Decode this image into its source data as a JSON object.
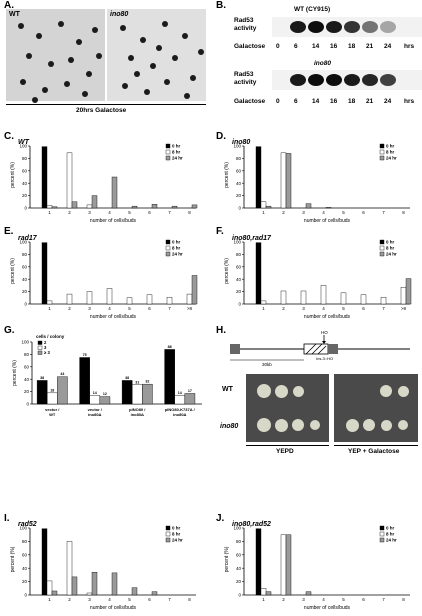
{
  "panel_labels": {
    "A": "A.",
    "B": "B.",
    "C": "C.",
    "D": "D.",
    "E": "E.",
    "F": "F.",
    "G": "G.",
    "H": "H.",
    "I": "I.",
    "J": "J."
  },
  "panelA": {
    "left_label": "WT",
    "right_label": "ino80",
    "caption": "20hrs Galactose"
  },
  "panelB": {
    "top_title": "WT (CY915)",
    "bottom_title": "ino80",
    "row_label_1": "Rad53",
    "row_label_2": "activity",
    "galactose_label": "Galactose",
    "timepoints": [
      "0",
      "6",
      "14",
      "16",
      "18",
      "21",
      "24",
      "hrs"
    ]
  },
  "panelH": {
    "hml_label": "HO",
    "dist_label": "30kb",
    "site_label": "Ins-3::HO",
    "wt_label": "WT",
    "ino80_label": "ino80",
    "ypd_label": "YEPD",
    "gal_label": "YEP + Galactose"
  },
  "colors": {
    "bar_0hr": "#000000",
    "bar_8hr": "#ffffff",
    "bar_24hr": "#9a9a9a",
    "plate": "#4a4a4a",
    "colony": "#d8d8c8"
  },
  "chart_data": [
    {
      "id": "C",
      "type": "bar",
      "title": "WT",
      "xlabel": "number of cells/buds",
      "ylabel": "percent (%)",
      "ylim": [
        0,
        100
      ],
      "yticks": [
        "0",
        "20",
        "40",
        "60",
        "80",
        "100"
      ],
      "categories": [
        "1",
        "2",
        "3",
        "4",
        "5",
        "6",
        "7",
        "8"
      ],
      "series": [
        {
          "name": "0 hr",
          "values": [
            99,
            0,
            0,
            0,
            0,
            0,
            0,
            0
          ]
        },
        {
          "name": "8 hr",
          "values": [
            4,
            89,
            5,
            0,
            0,
            0,
            0,
            0
          ]
        },
        {
          "name": "24 hr",
          "values": [
            2,
            10,
            20,
            50,
            3,
            6,
            3,
            5
          ]
        }
      ]
    },
    {
      "id": "D",
      "type": "bar",
      "title": "ino80",
      "xlabel": "number of cells/buds",
      "ylabel": "percent (%)",
      "ylim": [
        0,
        100
      ],
      "yticks": [
        "0",
        "20",
        "40",
        "60",
        "80",
        "100"
      ],
      "categories": [
        "1",
        "2",
        "3",
        "4",
        "5",
        "6",
        "7",
        "8"
      ],
      "series": [
        {
          "name": "0 hr",
          "values": [
            99,
            0,
            0,
            0,
            0,
            0,
            0,
            0
          ]
        },
        {
          "name": "8 hr",
          "values": [
            10,
            89,
            0,
            0,
            0,
            0,
            0,
            0
          ]
        },
        {
          "name": "24 hr",
          "values": [
            3,
            88,
            7,
            1,
            0,
            0,
            0,
            0
          ]
        }
      ]
    },
    {
      "id": "E",
      "type": "bar",
      "title": "rad17",
      "xlabel": "number of cells/buds",
      "ylabel": "percent (%)",
      "ylim": [
        0,
        100
      ],
      "yticks": [
        "0",
        "20",
        "40",
        "60",
        "80",
        "100"
      ],
      "categories": [
        "1",
        "2",
        "3",
        "4",
        "5",
        "6",
        "7",
        ">8"
      ],
      "series": [
        {
          "name": "0 hr",
          "values": [
            99,
            0,
            0,
            0,
            0,
            0,
            0,
            0
          ]
        },
        {
          "name": "8 hr",
          "values": [
            5,
            16,
            20,
            25,
            10,
            15,
            11,
            16
          ]
        },
        {
          "name": "24 hr",
          "values": [
            0,
            0,
            0,
            0,
            0,
            0,
            0,
            46
          ]
        }
      ]
    },
    {
      "id": "F",
      "type": "bar",
      "title": "ino80,rad17",
      "xlabel": "number of cells/buds",
      "ylabel": "percent (%)",
      "ylim": [
        0,
        100
      ],
      "yticks": [
        "0",
        "20",
        "40",
        "60",
        "80",
        "100"
      ],
      "categories": [
        "1",
        "2",
        "3",
        "4",
        "5",
        "6",
        "7",
        ">8"
      ],
      "series": [
        {
          "name": "0 hr",
          "values": [
            99,
            0,
            0,
            0,
            0,
            0,
            0,
            0
          ]
        },
        {
          "name": "8 hr",
          "values": [
            5,
            21,
            21,
            30,
            18,
            15,
            11,
            27
          ]
        },
        {
          "name": "24 hr",
          "values": [
            0,
            0,
            0,
            0,
            0,
            0,
            0,
            41
          ]
        }
      ]
    },
    {
      "id": "G",
      "type": "bar",
      "title": "",
      "xlabel": "",
      "ylabel": "percent (%)",
      "ylim": [
        0,
        100
      ],
      "yticks": [
        "0",
        "20",
        "40",
        "60",
        "80",
        "100"
      ],
      "legend_title": "cells / colony",
      "categories": [
        "vector / WT",
        "vector / ino80Δ",
        "pINO80 / ino80Δ",
        "pINO80-K737A / ino80Δ"
      ],
      "series": [
        {
          "name": "2",
          "values": [
            38,
            75,
            38,
            88
          ]
        },
        {
          "name": "3",
          "values": [
            18,
            14,
            31,
            14
          ]
        },
        {
          "name": "≥ 3",
          "values": [
            44,
            12,
            32,
            17
          ]
        }
      ],
      "data_labels": [
        [
          "38",
          "18",
          "44"
        ],
        [
          "75",
          "14",
          "12"
        ],
        [
          "38",
          "31",
          "32"
        ],
        [
          "88",
          "14",
          "17"
        ]
      ]
    },
    {
      "id": "I",
      "type": "bar",
      "title": "rad52",
      "xlabel": "number of cells/buds",
      "ylabel": "percent (%)",
      "ylim": [
        0,
        100
      ],
      "yticks": [
        "0",
        "20",
        "40",
        "60",
        "80",
        "100"
      ],
      "categories": [
        "1",
        "2",
        "3",
        "4",
        "5",
        "6",
        "7",
        "8"
      ],
      "series": [
        {
          "name": "0 hr",
          "values": [
            99,
            0,
            0,
            0,
            0,
            0,
            0,
            0
          ]
        },
        {
          "name": "8 hr",
          "values": [
            21,
            80,
            3,
            0,
            0,
            0,
            0,
            0
          ]
        },
        {
          "name": "24 hr",
          "values": [
            6,
            27,
            34,
            33,
            11,
            5,
            0,
            0
          ]
        }
      ]
    },
    {
      "id": "J",
      "type": "bar",
      "title": "ino80,rad52",
      "xlabel": "number of cells/buds",
      "ylabel": "percent (%)",
      "ylim": [
        0,
        100
      ],
      "yticks": [
        "0",
        "20",
        "40",
        "60",
        "80",
        "100"
      ],
      "categories": [
        "1",
        "2",
        "3",
        "4",
        "5",
        "6",
        "7",
        "8"
      ],
      "series": [
        {
          "name": "0 hr",
          "values": [
            99,
            0,
            0,
            0,
            0,
            0,
            0,
            0
          ]
        },
        {
          "name": "8 hr",
          "values": [
            10,
            90,
            0,
            0,
            0,
            0,
            0,
            0
          ]
        },
        {
          "name": "24 hr",
          "values": [
            5,
            90,
            5,
            0,
            0,
            0,
            0,
            0
          ]
        }
      ]
    }
  ]
}
